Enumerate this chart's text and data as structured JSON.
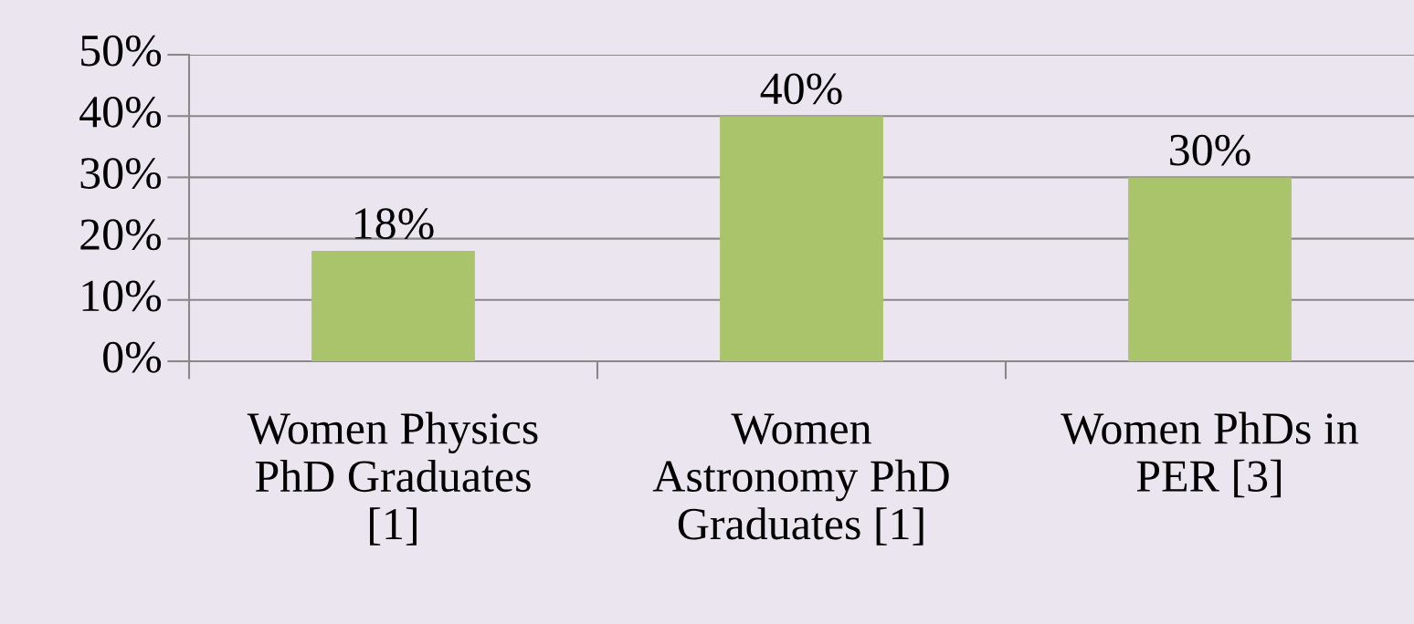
{
  "chart_data": {
    "type": "bar",
    "categories": [
      "Women Physics\nPhD Graduates\n[1]",
      "Women\nAstronomy PhD\nGraduates [1]",
      "Women PhDs in\nPER [3]"
    ],
    "values": [
      18,
      40,
      30
    ],
    "value_labels": [
      "18%",
      "40%",
      "30%"
    ],
    "color": "#a9c46a",
    "ylim": [
      0,
      50
    ],
    "yticks": [
      {
        "value": 0,
        "label": "0%"
      },
      {
        "value": 10,
        "label": "10%"
      },
      {
        "value": 20,
        "label": "20%"
      },
      {
        "value": 30,
        "label": "30%"
      },
      {
        "value": 40,
        "label": "40%"
      },
      {
        "value": 50,
        "label": "50%"
      }
    ],
    "grid": "y",
    "legend": false
  }
}
